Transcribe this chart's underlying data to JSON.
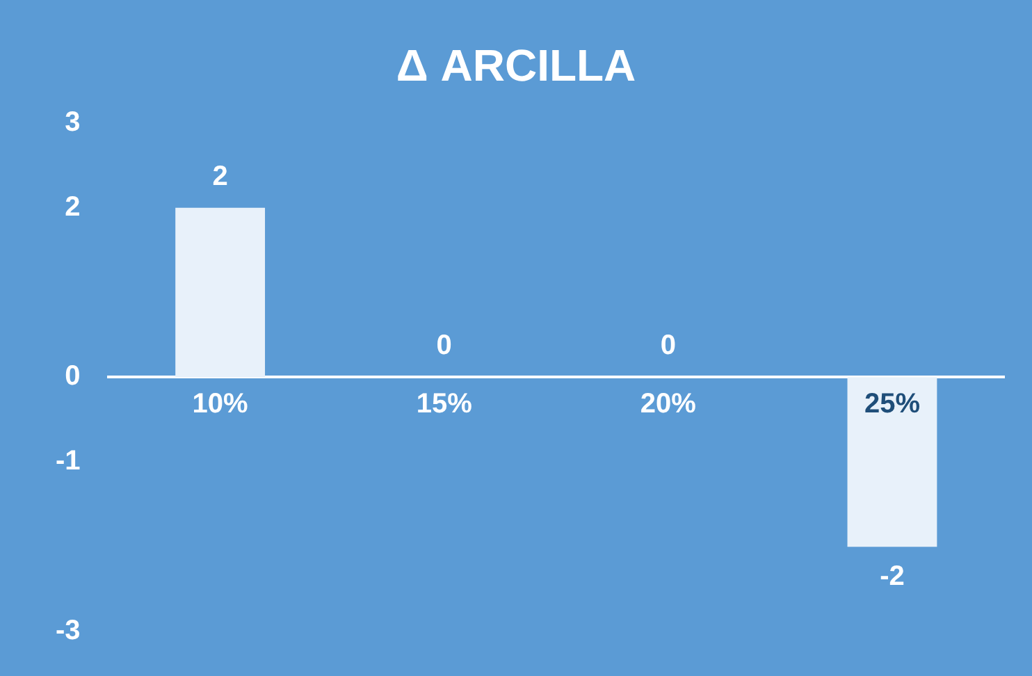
{
  "chart_data": {
    "type": "bar",
    "title": "Δ ARCILLA",
    "categories": [
      "10%",
      "15%",
      "20%",
      "25%"
    ],
    "values": [
      2,
      0,
      0,
      -2
    ],
    "color": "#e8f1fa",
    "ylim": [
      -3,
      3
    ],
    "yticks": [
      3,
      2,
      0,
      -1,
      -3
    ],
    "grid": false,
    "legend": false,
    "data_labels": true
  }
}
